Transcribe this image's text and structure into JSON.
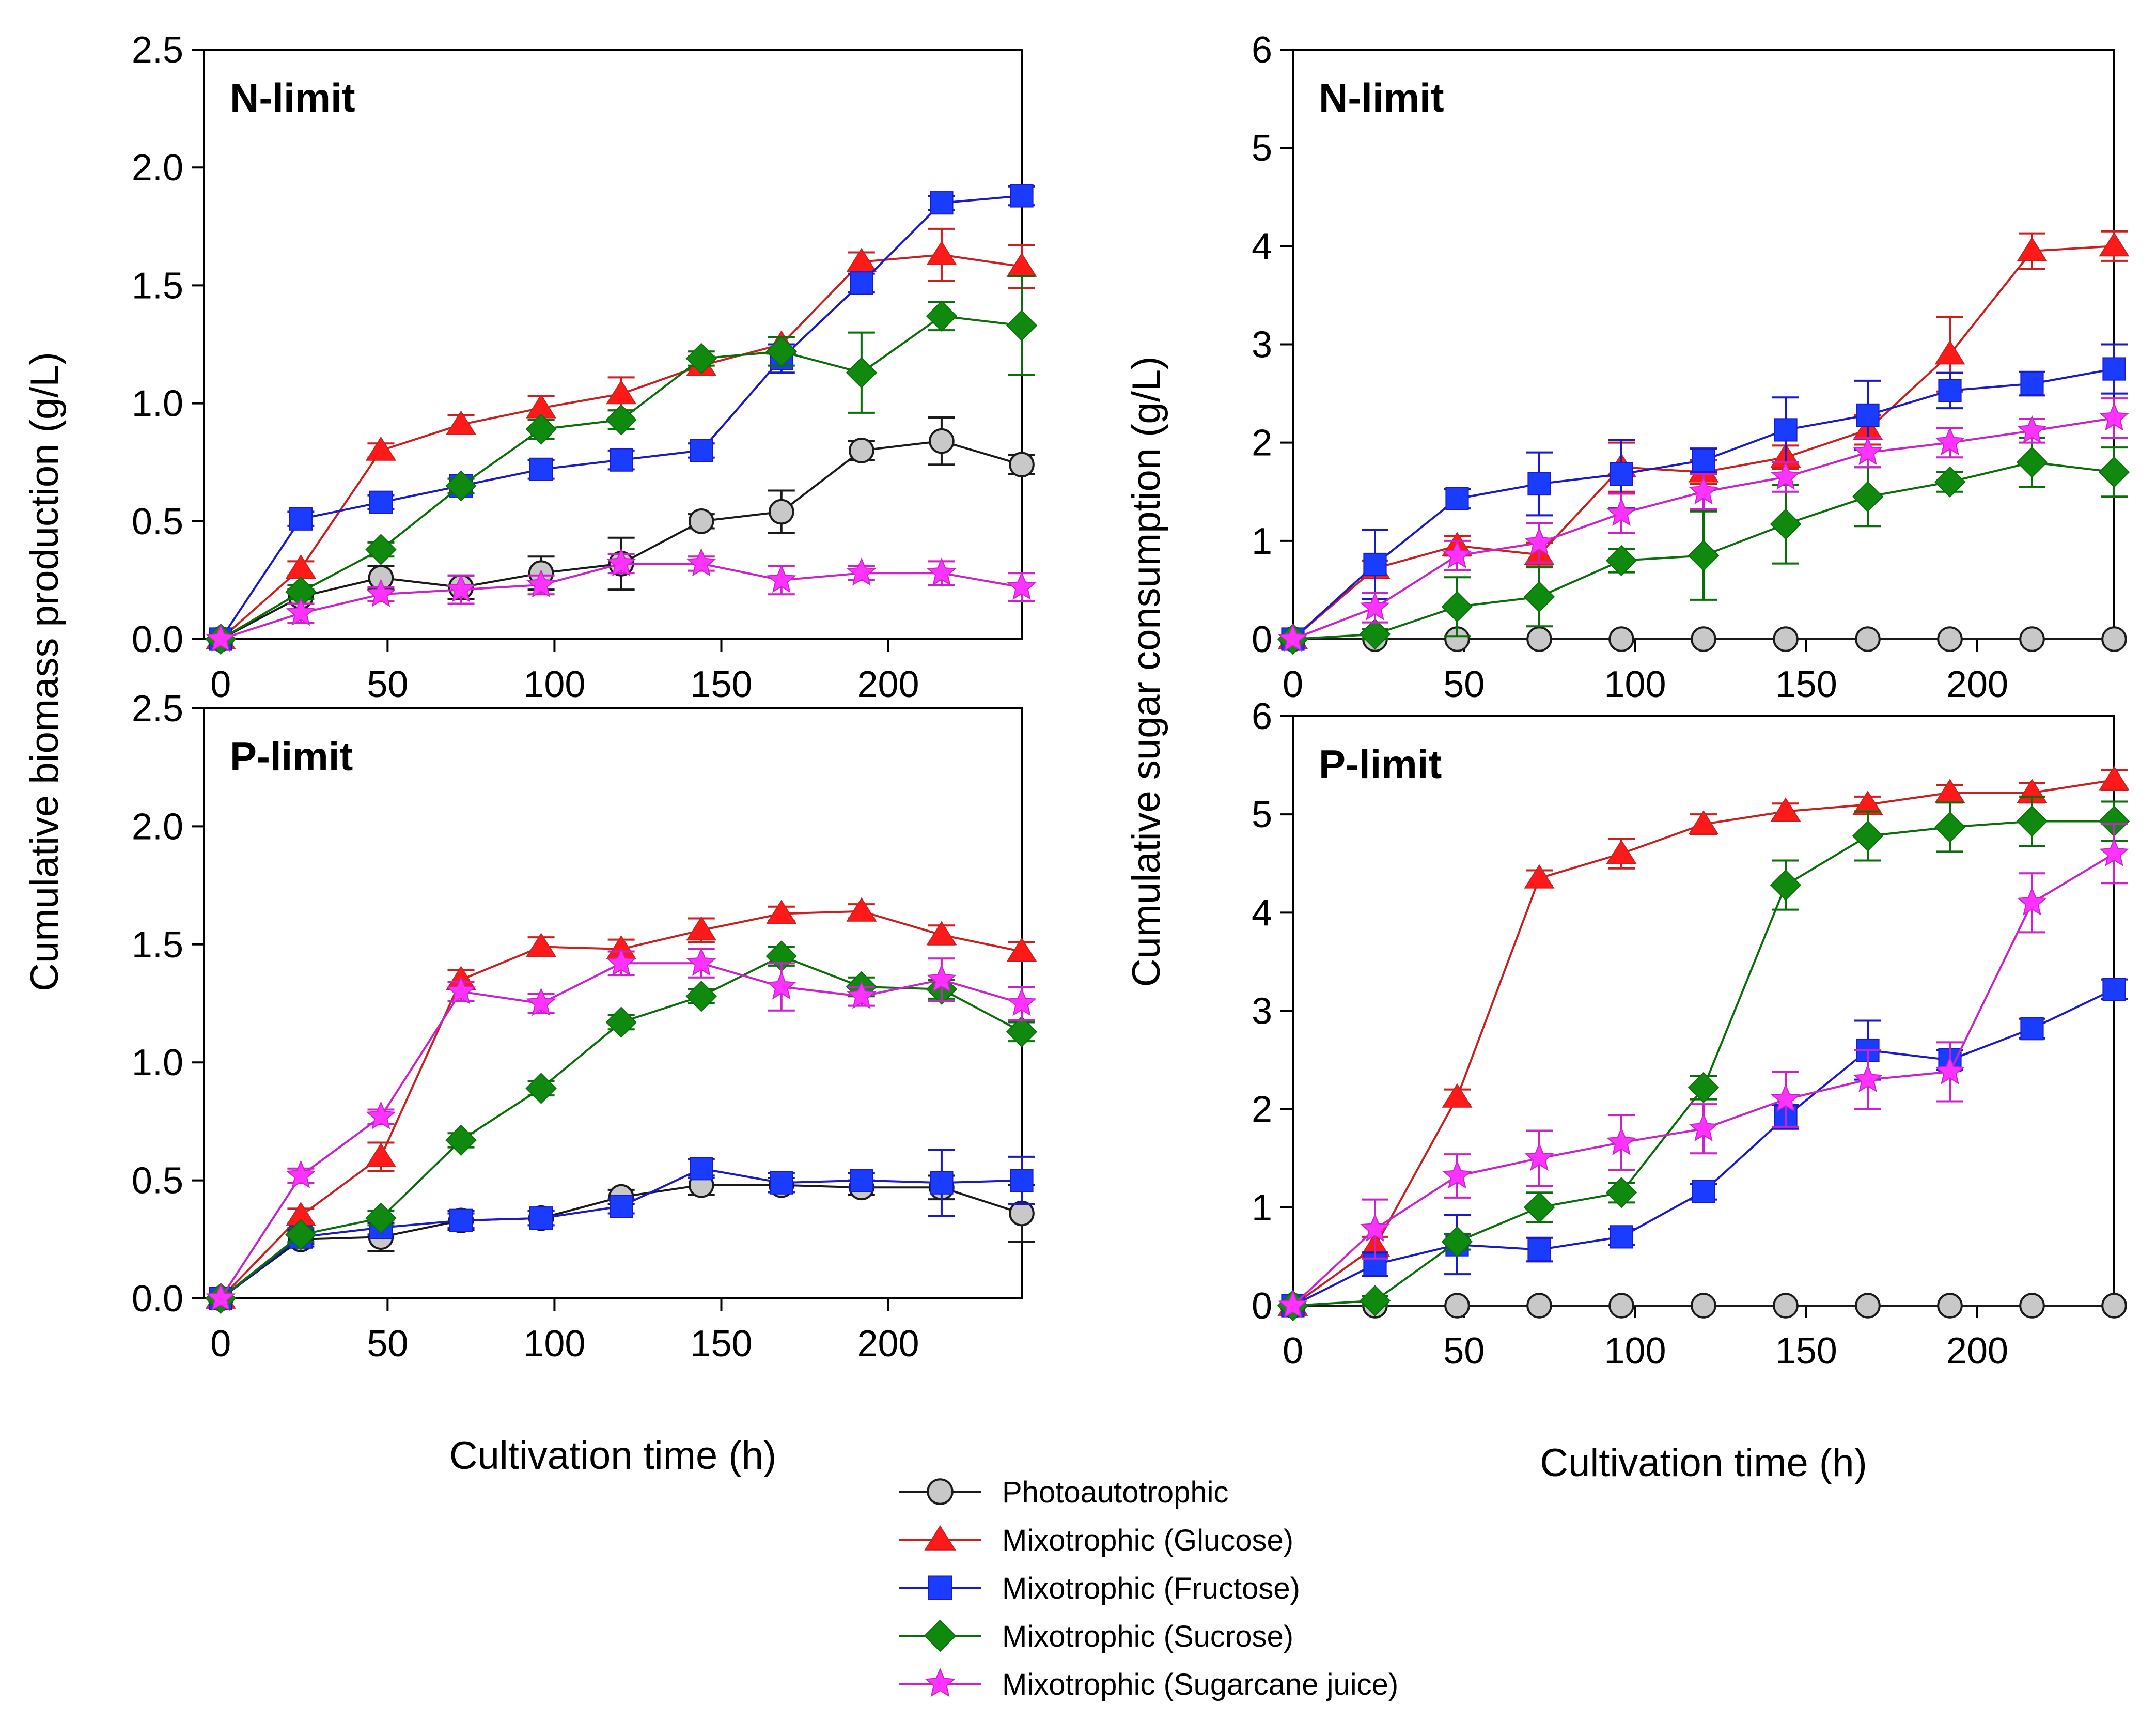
{
  "legend": {
    "entries": [
      {
        "name": "Photoautotrophic",
        "color": "#1a1a1a",
        "fill": "#c8c8c8",
        "marker": "circle"
      },
      {
        "name": "Mixotrophic (Glucose)",
        "color": "#cc1f1f",
        "fill": "#ff1a1a",
        "marker": "triangle"
      },
      {
        "name": "Mixotrophic (Fructose)",
        "color": "#1a1acc",
        "fill": "#1a3cff",
        "marker": "square"
      },
      {
        "name": "Mixotrophic (Sucrose)",
        "color": "#0a6e0a",
        "fill": "#0f8a0f",
        "marker": "diamond"
      },
      {
        "name": "Mixotrophic (Sugarcane juice)",
        "color": "#cc22cc",
        "fill": "#ff33ff",
        "marker": "star"
      }
    ]
  },
  "chart_data": [
    {
      "id": "tl",
      "type": "line",
      "panel_label": "N-limit",
      "xlabel": "",
      "ylabel": "Cumulative biomass production (g/L)",
      "xlim": [
        -5,
        240
      ],
      "ylim": [
        0,
        2.5
      ],
      "xticks": [
        "0",
        "50",
        "100",
        "150",
        "200"
      ],
      "yticks": [
        "0.0",
        "0.5",
        "1.0",
        "1.5",
        "2.0",
        "2.5"
      ],
      "x": [
        0,
        24,
        48,
        72,
        96,
        120,
        144,
        168,
        192,
        216,
        240
      ],
      "series": [
        {
          "name": "Photoautotrophic",
          "values": [
            0,
            0.18,
            0.26,
            0.22,
            0.28,
            0.32,
            0.5,
            0.54,
            0.8,
            0.84,
            0.74
          ],
          "errors": [
            0,
            0.03,
            0.05,
            0.05,
            0.07,
            0.11,
            0.03,
            0.09,
            0.04,
            0.1,
            0.04
          ]
        },
        {
          "name": "Mixotrophic (Glucose)",
          "values": [
            0,
            0.3,
            0.8,
            0.91,
            0.98,
            1.04,
            1.16,
            1.25,
            1.6,
            1.63,
            1.58
          ],
          "errors": [
            0,
            0.03,
            0.03,
            0.04,
            0.05,
            0.07,
            0.04,
            0.03,
            0.04,
            0.11,
            0.09
          ]
        },
        {
          "name": "Mixotrophic (Fructose)",
          "values": [
            0,
            0.51,
            0.58,
            0.65,
            0.72,
            0.76,
            0.8,
            1.19,
            1.51,
            1.85,
            1.88
          ],
          "errors": [
            0,
            0.03,
            0.03,
            0.03,
            0.04,
            0.04,
            0.03,
            0.06,
            0.04,
            0.03,
            0.04
          ]
        },
        {
          "name": "Mixotrophic (Sucrose)",
          "values": [
            0,
            0.2,
            0.38,
            0.65,
            0.89,
            0.93,
            1.19,
            1.22,
            1.13,
            1.37,
            1.33
          ],
          "errors": [
            0,
            0.03,
            0.03,
            0.03,
            0.04,
            0.04,
            0.03,
            0.06,
            0.17,
            0.06,
            0.21
          ]
        },
        {
          "name": "Mixotrophic (Sugarcane juice)",
          "values": [
            0,
            0.11,
            0.19,
            0.21,
            0.23,
            0.32,
            0.32,
            0.25,
            0.28,
            0.28,
            0.22
          ],
          "errors": [
            0,
            0.04,
            0.03,
            0.06,
            0.04,
            0.04,
            0.03,
            0.06,
            0.03,
            0.05,
            0.06
          ]
        }
      ]
    },
    {
      "id": "bl",
      "type": "line",
      "panel_label": "P-limit",
      "xlabel": "Cultivation time (h)",
      "ylabel": "",
      "xlim": [
        -5,
        240
      ],
      "ylim": [
        0,
        2.5
      ],
      "xticks": [
        "0",
        "50",
        "100",
        "150",
        "200"
      ],
      "yticks": [
        "0.0",
        "0.5",
        "1.0",
        "1.5",
        "2.0",
        "2.5"
      ],
      "x": [
        0,
        24,
        48,
        72,
        96,
        120,
        144,
        168,
        192,
        216,
        240
      ],
      "series": [
        {
          "name": "Photoautotrophic",
          "values": [
            0,
            0.25,
            0.26,
            0.33,
            0.34,
            0.43,
            0.48,
            0.48,
            0.47,
            0.47,
            0.36
          ],
          "errors": [
            0,
            0.03,
            0.06,
            0.04,
            0.03,
            0.03,
            0.04,
            0.03,
            0.03,
            0.05,
            0.12
          ]
        },
        {
          "name": "Mixotrophic (Glucose)",
          "values": [
            0,
            0.35,
            0.6,
            1.35,
            1.49,
            1.48,
            1.56,
            1.63,
            1.64,
            1.54,
            1.47
          ],
          "errors": [
            0,
            0.03,
            0.06,
            0.04,
            0.04,
            0.04,
            0.05,
            0.03,
            0.03,
            0.04,
            0.04
          ]
        },
        {
          "name": "Mixotrophic (Fructose)",
          "values": [
            0,
            0.26,
            0.3,
            0.33,
            0.34,
            0.39,
            0.55,
            0.49,
            0.5,
            0.49,
            0.5
          ],
          "errors": [
            0,
            0.03,
            0.03,
            0.03,
            0.03,
            0.03,
            0.04,
            0.04,
            0.03,
            0.14,
            0.1
          ]
        },
        {
          "name": "Mixotrophic (Sucrose)",
          "values": [
            0,
            0.27,
            0.34,
            0.67,
            0.89,
            1.17,
            1.28,
            1.45,
            1.32,
            1.31,
            1.13
          ],
          "errors": [
            0,
            0.03,
            0.03,
            0.03,
            0.03,
            0.03,
            0.03,
            0.04,
            0.04,
            0.04,
            0.04
          ]
        },
        {
          "name": "Mixotrophic (Sugarcane juice)",
          "values": [
            0,
            0.52,
            0.77,
            1.3,
            1.25,
            1.42,
            1.42,
            1.32,
            1.28,
            1.35,
            1.25
          ],
          "errors": [
            0,
            0.03,
            0.03,
            0.04,
            0.04,
            0.05,
            0.06,
            0.1,
            0.04,
            0.09,
            0.07
          ]
        }
      ]
    },
    {
      "id": "tr",
      "type": "line",
      "panel_label": "N-limit",
      "xlabel": "",
      "ylabel": "Cumulative sugar consumption (g/L)",
      "xlim": [
        0,
        240
      ],
      "ylim": [
        0,
        6
      ],
      "xticks": [
        "0",
        "50",
        "100",
        "150",
        "200"
      ],
      "yticks": [
        "0",
        "1",
        "2",
        "3",
        "4",
        "5",
        "6"
      ],
      "x": [
        0,
        24,
        48,
        72,
        96,
        120,
        144,
        168,
        192,
        216,
        240
      ],
      "series": [
        {
          "name": "Photoautotrophic",
          "values": [
            0,
            0,
            0,
            0,
            0,
            0,
            0,
            0,
            0,
            0,
            0
          ],
          "errors": [
            0,
            0,
            0,
            0,
            0,
            0,
            0,
            0,
            0,
            0,
            0
          ]
        },
        {
          "name": "Mixotrophic (Glucose)",
          "values": [
            0,
            0.72,
            0.95,
            0.86,
            1.75,
            1.7,
            1.85,
            2.13,
            2.9,
            3.95,
            4.0
          ],
          "errors": [
            0,
            0.08,
            0.1,
            0.12,
            0.25,
            0.12,
            0.12,
            0.15,
            0.38,
            0.18,
            0.15
          ]
        },
        {
          "name": "Mixotrophic (Fructose)",
          "values": [
            0,
            0.76,
            1.43,
            1.58,
            1.68,
            1.82,
            2.13,
            2.28,
            2.53,
            2.6,
            2.75
          ],
          "errors": [
            0,
            0.35,
            0.1,
            0.32,
            0.35,
            0.12,
            0.33,
            0.35,
            0.18,
            0.12,
            0.25
          ]
        },
        {
          "name": "Mixotrophic (Sucrose)",
          "values": [
            0,
            0.05,
            0.33,
            0.43,
            0.8,
            0.85,
            1.17,
            1.45,
            1.6,
            1.8,
            1.7
          ],
          "errors": [
            0,
            0.05,
            0.3,
            0.3,
            0.12,
            0.45,
            0.4,
            0.3,
            0.1,
            0.25,
            0.25
          ]
        },
        {
          "name": "Mixotrophic (Sugarcane juice)",
          "values": [
            0,
            0.32,
            0.85,
            0.98,
            1.28,
            1.5,
            1.65,
            1.9,
            2.0,
            2.12,
            2.25
          ],
          "errors": [
            0,
            0.15,
            0.15,
            0.2,
            0.2,
            0.18,
            0.15,
            0.15,
            0.15,
            0.12,
            0.2
          ]
        }
      ]
    },
    {
      "id": "br",
      "type": "line",
      "panel_label": "P-limit",
      "xlabel": "Cultivation time (h)",
      "ylabel": "",
      "xlim": [
        0,
        240
      ],
      "ylim": [
        0,
        6
      ],
      "xticks": [
        "0",
        "50",
        "100",
        "150",
        "200"
      ],
      "yticks": [
        "0",
        "1",
        "2",
        "3",
        "4",
        "5",
        "6"
      ],
      "x": [
        0,
        24,
        48,
        72,
        96,
        120,
        144,
        168,
        192,
        216,
        240
      ],
      "series": [
        {
          "name": "Photoautotrophic",
          "values": [
            0,
            0,
            0,
            0,
            0,
            0,
            0,
            0,
            0,
            0,
            0
          ],
          "errors": [
            0,
            0,
            0,
            0,
            0,
            0,
            0,
            0,
            0,
            0,
            0
          ]
        },
        {
          "name": "Mixotrophic (Glucose)",
          "values": [
            0,
            0.6,
            2.12,
            4.35,
            4.6,
            4.9,
            5.03,
            5.1,
            5.22,
            5.22,
            5.35
          ],
          "errors": [
            0,
            0.1,
            0.08,
            0.08,
            0.15,
            0.1,
            0.08,
            0.08,
            0.08,
            0.1,
            0.1
          ]
        },
        {
          "name": "Mixotrophic (Fructose)",
          "values": [
            0,
            0.42,
            0.62,
            0.57,
            0.7,
            1.16,
            1.92,
            2.6,
            2.5,
            2.82,
            3.22
          ],
          "errors": [
            0,
            0.12,
            0.3,
            0.12,
            0.08,
            0.08,
            0.12,
            0.3,
            0.1,
            0.1,
            0.1
          ]
        },
        {
          "name": "Mixotrophic (Sucrose)",
          "values": [
            0,
            0.05,
            0.65,
            1.0,
            1.15,
            2.22,
            4.28,
            4.78,
            4.87,
            4.93,
            4.93
          ],
          "errors": [
            0,
            0.05,
            0.08,
            0.15,
            0.1,
            0.12,
            0.25,
            0.25,
            0.25,
            0.25,
            0.2
          ]
        },
        {
          "name": "Mixotrophic (Sugarcane juice)",
          "values": [
            0,
            0.78,
            1.32,
            1.5,
            1.66,
            1.8,
            2.1,
            2.3,
            2.38,
            4.1,
            4.6
          ],
          "errors": [
            0,
            0.3,
            0.22,
            0.28,
            0.28,
            0.25,
            0.28,
            0.3,
            0.3,
            0.3,
            0.3
          ]
        }
      ]
    }
  ]
}
